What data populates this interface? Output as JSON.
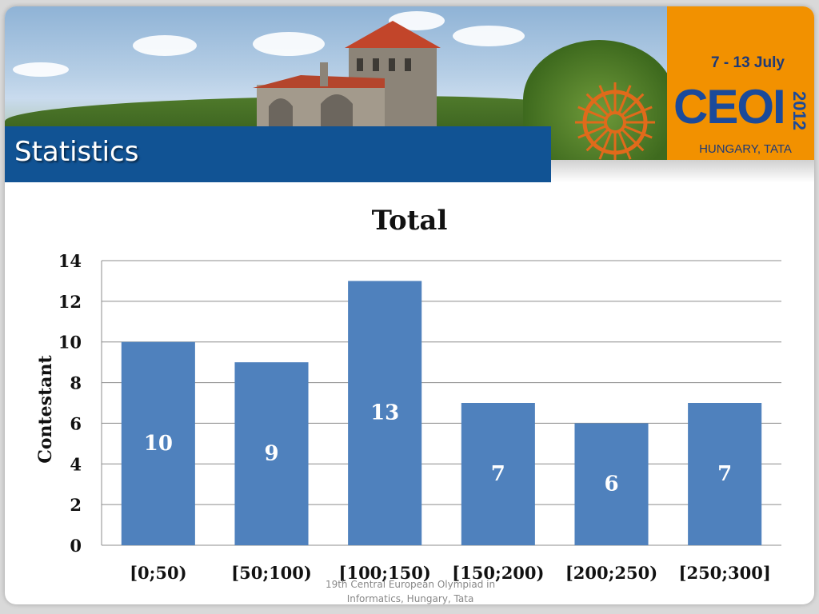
{
  "slide": {
    "title": "Statistics",
    "footer": "19th Central European Olympiad in Informatics, Hungary, Tata"
  },
  "logo": {
    "date": "7 - 13 July",
    "word": "CEOI",
    "year": "2012",
    "place": "HUNGARY, TATA"
  },
  "colors": {
    "title_bar": "#115394",
    "bar": "#4f81bd",
    "logo_bg": "#f29100",
    "logo_text": "#1b4a9a"
  },
  "chart_data": {
    "type": "bar",
    "title": "Total",
    "xlabel": "",
    "ylabel": "Contestant",
    "categories": [
      "[0;50)",
      "[50;100)",
      "[100;150)",
      "[150;200)",
      "[200;250)",
      "[250;300]"
    ],
    "values": [
      10,
      9,
      13,
      7,
      6,
      7
    ],
    "data_labels": [
      "10",
      "9",
      "13",
      "7",
      "6",
      "7"
    ],
    "ylim": [
      0,
      14
    ],
    "yticks": [
      0,
      2,
      4,
      6,
      8,
      10,
      12,
      14
    ],
    "grid": true,
    "legend": "none"
  }
}
